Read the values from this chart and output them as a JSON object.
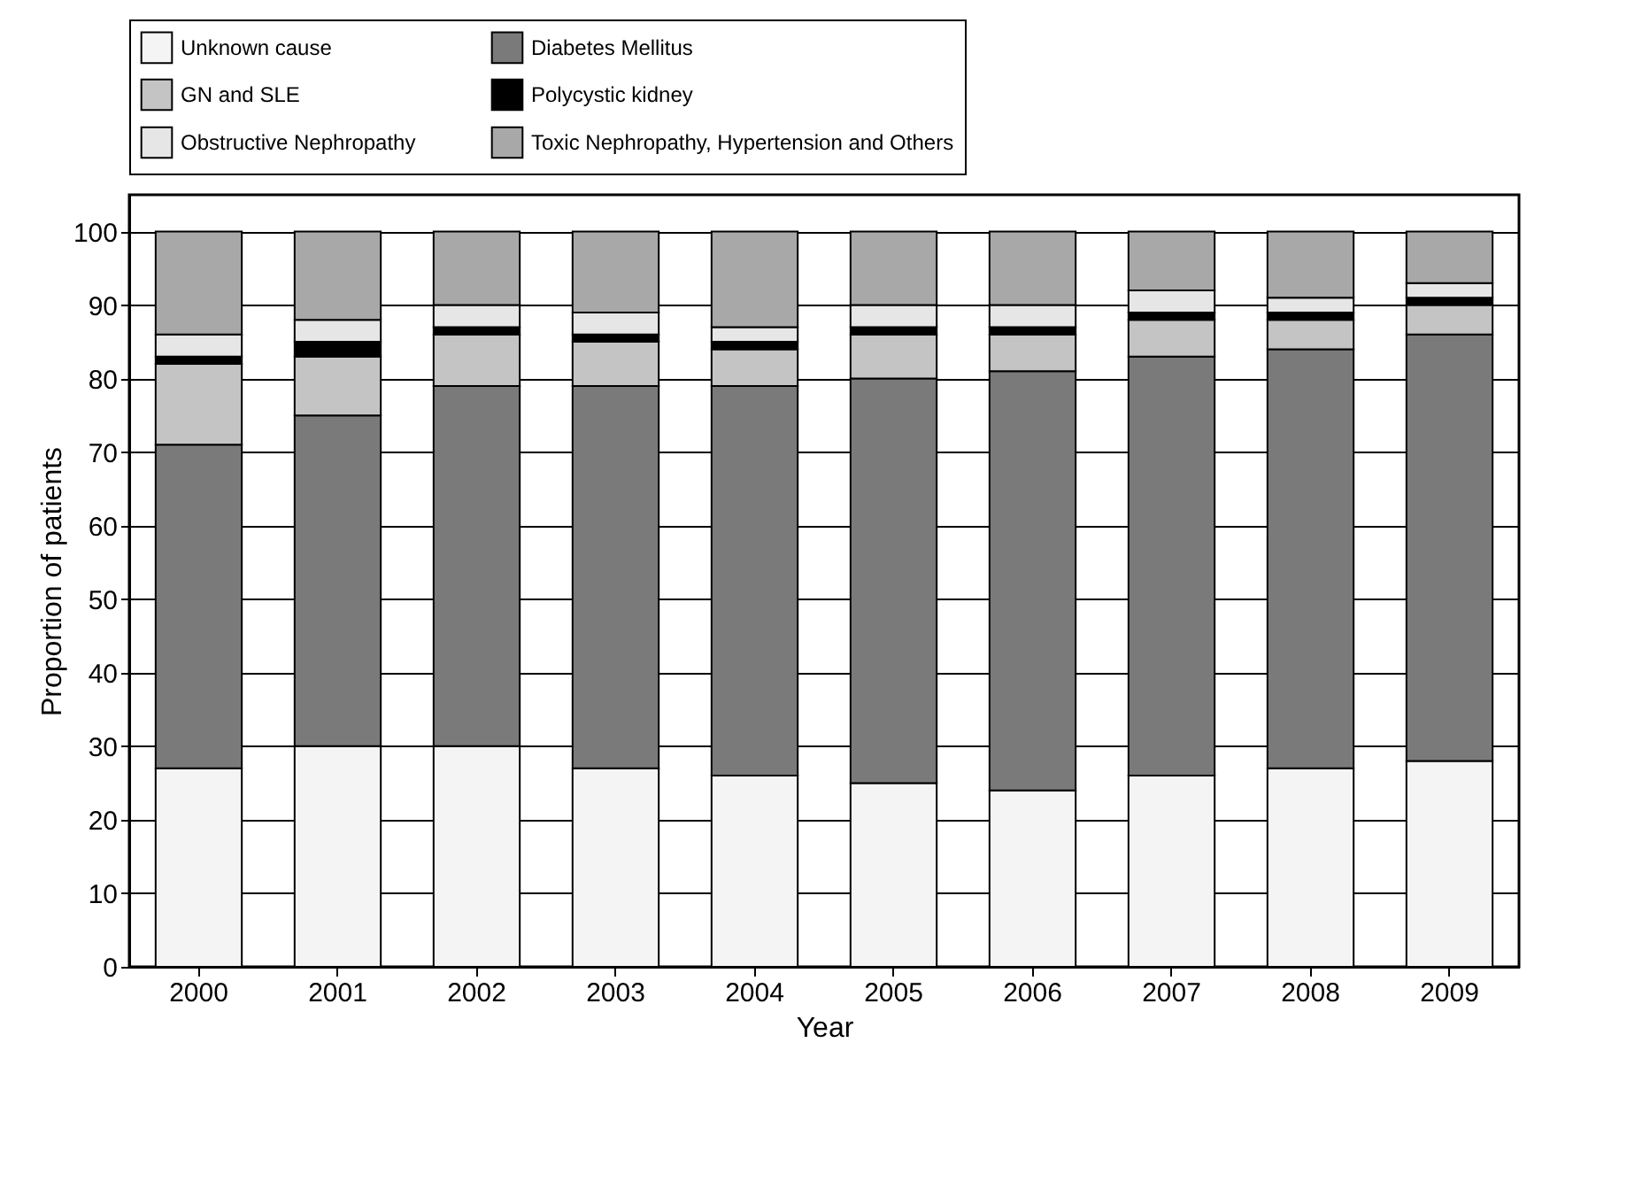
{
  "chart_data": {
    "type": "bar",
    "stacked": true,
    "xlabel": "Year",
    "ylabel": "Proportion of patients",
    "categories": [
      "2000",
      "2001",
      "2002",
      "2003",
      "2004",
      "2005",
      "2006",
      "2007",
      "2008",
      "2009"
    ],
    "series": [
      {
        "name": "Unknown cause",
        "color": "#f4f4f4",
        "values": [
          27,
          30,
          30,
          27,
          26,
          25,
          24,
          26,
          27,
          28
        ]
      },
      {
        "name": "Diabetes Mellitus",
        "color": "#7a7a7a",
        "values": [
          44,
          45,
          49,
          52,
          53,
          55,
          57,
          57,
          57,
          58
        ]
      },
      {
        "name": "GN and SLE",
        "color": "#c4c4c4",
        "values": [
          11,
          8,
          7,
          6,
          5,
          6,
          5,
          5,
          4,
          4
        ]
      },
      {
        "name": "Polycystic kidney",
        "color": "#000000",
        "values": [
          1,
          2,
          1,
          1,
          1,
          1,
          1,
          1,
          1,
          1
        ]
      },
      {
        "name": "Obstructive Nephropathy",
        "color": "#e6e6e6",
        "values": [
          3,
          3,
          3,
          3,
          2,
          3,
          3,
          3,
          2,
          2
        ]
      },
      {
        "name": "Toxic Nephropathy, Hypertension and Others",
        "color": "#a8a8a8",
        "values": [
          14,
          12,
          10,
          11,
          13,
          10,
          10,
          8,
          9,
          7
        ]
      }
    ],
    "ylim": [
      0,
      105
    ],
    "yticks": [
      0,
      10,
      20,
      30,
      40,
      50,
      60,
      70,
      80,
      90,
      100
    ],
    "grid": "y",
    "legend": "top"
  }
}
